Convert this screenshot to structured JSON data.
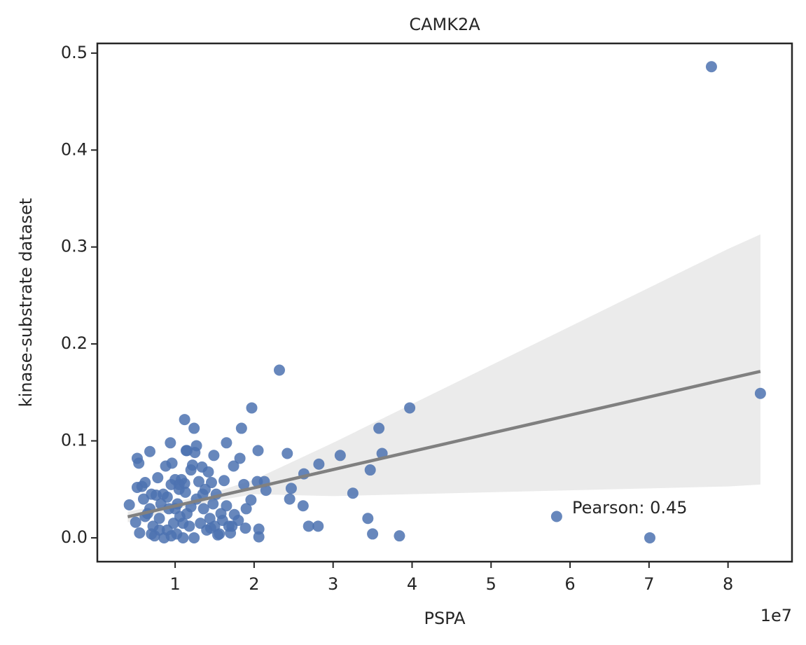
{
  "chart_data": {
    "type": "scatter",
    "title": "CAMK2A",
    "x_label": "PSPA",
    "y_label": "kinase-substrate dataset",
    "x_offset_label": "1e7",
    "annotation": "Pearson: 0.45",
    "color": "#4c72b0",
    "fit_color": "#808080",
    "band_color": "#ebebeb",
    "xlim": [
      0.015,
      8.81
    ],
    "ylim": [
      -0.0246,
      0.51
    ],
    "xticks": [
      1,
      2,
      3,
      4,
      5,
      6,
      7,
      8
    ],
    "yticks": [
      {
        "value": 0,
        "label": "0.0"
      },
      0.1,
      0.2,
      0.3,
      0.4,
      0.5
    ],
    "x": [
      7.79,
      8.41,
      5.83,
      7.01,
      3.97,
      3.84,
      3.5,
      3.62,
      3.58,
      3.47,
      3.44,
      3.25,
      3.09,
      2.82,
      2.81,
      2.69,
      2.63,
      2.62,
      2.47,
      2.45,
      2.42,
      2.32,
      2.06,
      2.05,
      1.97,
      1.84,
      1.12,
      1.24,
      1.14,
      1.27,
      0.94,
      0.68,
      0.52,
      0.54,
      1.65,
      1.49,
      1.82,
      2.13,
      2.15,
      2.04,
      1.96,
      1.9,
      1.89,
      2.06,
      1.74,
      1.62,
      1.87,
      1.72,
      1.56,
      0.42,
      0.5,
      0.55,
      0.52,
      0.58,
      0.6,
      0.62,
      0.65,
      0.68,
      0.7,
      0.72,
      0.74,
      0.76,
      0.78,
      0.8,
      0.82,
      0.85,
      0.86,
      0.88,
      0.9,
      0.92,
      0.95,
      0.96,
      0.98,
      1.0,
      1.02,
      1.03,
      1.05,
      1.06,
      1.08,
      1.1,
      1.12,
      1.13,
      1.15,
      1.18,
      1.2,
      1.22,
      1.24,
      1.25,
      1.27,
      1.3,
      1.32,
      1.34,
      1.36,
      1.38,
      1.4,
      1.42,
      1.44,
      1.46,
      1.48,
      1.5,
      1.52,
      1.54,
      1.58,
      1.6,
      1.65,
      1.68,
      1.7,
      1.75,
      1.8,
      0.62,
      0.7,
      0.9,
      1.0,
      1.1,
      1.2,
      1.35,
      1.45,
      0.8,
      0.95,
      1.15,
      1.05
    ],
    "values": [
      0.486,
      0.149,
      0.022,
      0.0,
      0.134,
      0.002,
      0.004,
      0.087,
      0.113,
      0.07,
      0.02,
      0.046,
      0.085,
      0.076,
      0.012,
      0.012,
      0.066,
      0.033,
      0.051,
      0.04,
      0.087,
      0.173,
      0.001,
      0.09,
      0.134,
      0.113,
      0.122,
      0.113,
      0.09,
      0.095,
      0.098,
      0.089,
      0.082,
      0.077,
      0.098,
      0.085,
      0.082,
      0.058,
      0.049,
      0.058,
      0.039,
      0.03,
      0.01,
      0.009,
      0.074,
      0.059,
      0.055,
      0.012,
      0.004,
      0.034,
      0.016,
      0.005,
      0.052,
      0.053,
      0.04,
      0.057,
      0.025,
      0.03,
      0.045,
      0.012,
      0.002,
      0.044,
      0.062,
      0.02,
      0.035,
      0.045,
      0.0,
      0.074,
      0.008,
      0.03,
      0.055,
      0.077,
      0.015,
      0.06,
      0.004,
      0.035,
      0.05,
      0.022,
      0.06,
      0.0,
      0.056,
      0.047,
      0.025,
      0.012,
      0.07,
      0.075,
      0.0,
      0.088,
      0.04,
      0.058,
      0.015,
      0.073,
      0.03,
      0.05,
      0.008,
      0.068,
      0.02,
      0.057,
      0.035,
      0.012,
      0.045,
      0.003,
      0.025,
      0.018,
      0.033,
      0.012,
      0.005,
      0.024,
      0.018,
      0.022,
      0.004,
      0.042,
      0.03,
      0.015,
      0.032,
      0.045,
      0.01,
      0.008,
      0.002,
      0.09,
      0.055
    ],
    "fit": {
      "x": [
        0.4,
        1,
        1.5,
        2,
        3,
        4,
        5,
        6,
        7,
        8,
        8.41
      ],
      "values": [
        0.0217,
        0.0329,
        0.0423,
        0.0516,
        0.0704,
        0.0891,
        0.1079,
        0.1266,
        0.1453,
        0.1641,
        0.1717
      ],
      "upper": [
        0.027,
        0.037,
        0.047,
        0.06,
        0.098,
        0.138,
        0.178,
        0.218,
        0.258,
        0.298,
        0.313
      ],
      "lower": [
        0.016,
        0.029,
        0.038,
        0.045,
        0.043,
        0.045,
        0.047,
        0.049,
        0.051,
        0.053,
        0.055
      ]
    }
  }
}
